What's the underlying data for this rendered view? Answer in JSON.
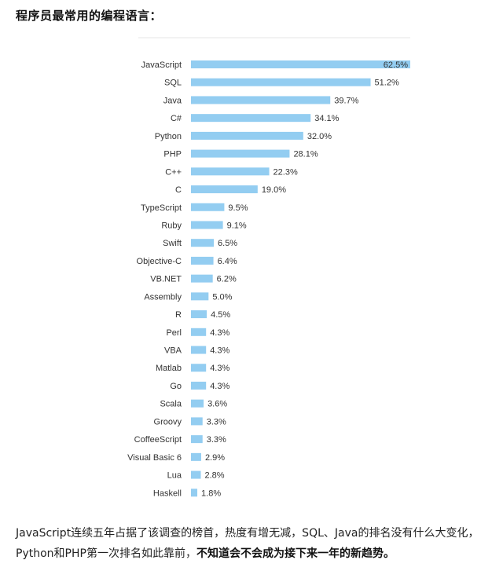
{
  "heading": "程序员最常用的编程语言：",
  "chart_data": {
    "type": "bar",
    "orientation": "horizontal",
    "categories": [
      "JavaScript",
      "SQL",
      "Java",
      "C#",
      "Python",
      "PHP",
      "C++",
      "C",
      "TypeScript",
      "Ruby",
      "Swift",
      "Objective-C",
      "VB.NET",
      "Assembly",
      "R",
      "Perl",
      "VBA",
      "Matlab",
      "Go",
      "Scala",
      "Groovy",
      "CoffeeScript",
      "Visual Basic 6",
      "Lua",
      "Haskell"
    ],
    "values": [
      62.5,
      51.2,
      39.7,
      34.1,
      32.0,
      28.1,
      22.3,
      19.0,
      9.5,
      9.1,
      6.5,
      6.4,
      6.2,
      5.0,
      4.5,
      4.3,
      4.3,
      4.3,
      4.3,
      3.6,
      3.3,
      3.3,
      2.9,
      2.8,
      1.8
    ],
    "value_labels": [
      "62.5%",
      "51.2%",
      "39.7%",
      "34.1%",
      "32.0%",
      "28.1%",
      "22.3%",
      "19.0%",
      "9.5%",
      "9.1%",
      "6.5%",
      "6.4%",
      "6.2%",
      "5.0%",
      "4.5%",
      "4.3%",
      "4.3%",
      "4.3%",
      "4.3%",
      "3.6%",
      "3.3%",
      "3.3%",
      "2.9%",
      "2.8%",
      "1.8%"
    ],
    "unit": "%",
    "title": "",
    "xlabel": "",
    "ylabel": "",
    "xlim": [
      0,
      62.5
    ],
    "grid": false,
    "legend": "none",
    "bar_color": "#93cdf1"
  },
  "paragraph": {
    "normal": "JavaScript连续五年占据了该调查的榜首，热度有增无减，SQL、Java的排名没有什么大变化，Python和PHP第一次排名如此靠前，",
    "bold": "不知道会不会成为接下来一年的新趋势。"
  }
}
